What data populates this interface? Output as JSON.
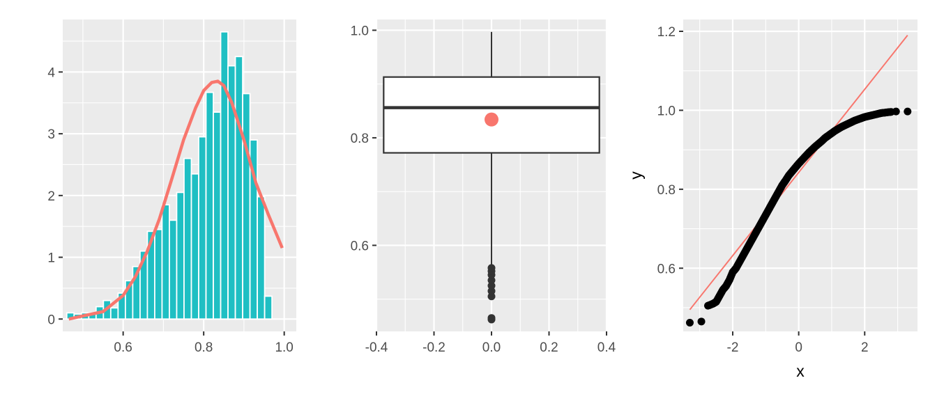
{
  "chart_data": [
    {
      "type": "histogram",
      "panel": "histogram-with-density",
      "xlim": [
        0.45,
        1.03
      ],
      "ylim": [
        -0.2,
        4.85
      ],
      "x_ticks": [
        0.6,
        0.8,
        1.0
      ],
      "x_tick_labels": [
        "0.6",
        "0.8",
        "1.0"
      ],
      "y_ticks": [
        0,
        1,
        2,
        3,
        4
      ],
      "y_tick_labels": [
        "0",
        "1",
        "2",
        "3",
        "4"
      ],
      "grid": true,
      "bar_color": "#1fbfc3",
      "bar_outline": "#ffffff",
      "bins": {
        "start": 0.46,
        "width": 0.0182,
        "heights": [
          0.1,
          0.08,
          0.1,
          0.1,
          0.2,
          0.3,
          0.18,
          0.42,
          0.62,
          0.85,
          1.1,
          1.42,
          1.45,
          1.85,
          1.6,
          2.05,
          2.6,
          2.35,
          2.95,
          3.67,
          3.35,
          4.65,
          4.1,
          4.25,
          3.65,
          2.9,
          1.98,
          0.37
        ]
      },
      "density_curve": {
        "color": "#f8766d",
        "x": [
          0.465,
          0.5,
          0.55,
          0.6,
          0.63,
          0.66,
          0.69,
          0.72,
          0.75,
          0.78,
          0.8,
          0.82,
          0.835,
          0.85,
          0.87,
          0.9,
          0.93,
          0.96,
          0.995
        ],
        "y": [
          0.0,
          0.05,
          0.12,
          0.38,
          0.68,
          1.1,
          1.62,
          2.25,
          2.9,
          3.42,
          3.7,
          3.83,
          3.85,
          3.78,
          3.5,
          2.9,
          2.2,
          1.7,
          1.15
        ]
      }
    },
    {
      "type": "boxplot",
      "panel": "boxplot",
      "xlim": [
        -0.4,
        0.4
      ],
      "ylim": [
        0.44,
        1.02
      ],
      "x_ticks": [
        -0.4,
        -0.2,
        0.0,
        0.2,
        0.4
      ],
      "x_tick_labels": [
        "-0.4",
        "-0.2",
        "0.0",
        "0.2",
        "0.4"
      ],
      "y_ticks": [
        0.6,
        0.8,
        1.0
      ],
      "y_tick_labels": [
        "0.6",
        "0.8",
        "1.0"
      ],
      "grid": true,
      "box": {
        "x_left": -0.375,
        "x_right": 0.375,
        "center": 0.0,
        "q1": 0.772,
        "median": 0.856,
        "q3": 0.913,
        "whisker_low": 0.56,
        "whisker_high": 0.997,
        "mean": 0.834,
        "mean_color": "#f8766d",
        "outliers": [
          0.462,
          0.465,
          0.505,
          0.515,
          0.525,
          0.535,
          0.545,
          0.552,
          0.558
        ]
      }
    },
    {
      "type": "scatter",
      "panel": "qq-plot",
      "xlabel": "x",
      "ylabel": "y",
      "xlim": [
        -3.5,
        3.6
      ],
      "ylim": [
        0.44,
        1.23
      ],
      "x_ticks": [
        -2,
        0,
        2
      ],
      "x_tick_labels": [
        "-2",
        "0",
        "2"
      ],
      "y_ticks": [
        0.6,
        0.8,
        1.0,
        1.2
      ],
      "y_tick_labels": [
        "0.6",
        "0.8",
        "1.0",
        "1.2"
      ],
      "grid": true,
      "reference_line": {
        "color": "#f8766d",
        "x": [
          -3.3,
          3.3
        ],
        "y": [
          0.495,
          1.19
        ]
      },
      "points": {
        "color": "#000000",
        "x": [
          -3.3,
          -2.95,
          -2.75,
          -2.6,
          -2.5,
          -2.4,
          -2.3,
          -2.2,
          -2.1,
          -2.0,
          -1.9,
          -1.8,
          -1.7,
          -1.6,
          -1.5,
          -1.4,
          -1.3,
          -1.2,
          -1.1,
          -1.0,
          -0.9,
          -0.8,
          -0.7,
          -0.6,
          -0.5,
          -0.4,
          -0.3,
          -0.2,
          -0.1,
          0.0,
          0.1,
          0.2,
          0.3,
          0.4,
          0.5,
          0.6,
          0.7,
          0.8,
          0.9,
          1.0,
          1.1,
          1.2,
          1.3,
          1.4,
          1.5,
          1.6,
          1.7,
          1.8,
          1.9,
          2.0,
          2.1,
          2.2,
          2.3,
          2.4,
          2.5,
          2.6,
          2.7,
          2.8,
          2.95,
          3.3
        ],
        "y": [
          0.462,
          0.465,
          0.505,
          0.51,
          0.515,
          0.53,
          0.545,
          0.555,
          0.57,
          0.59,
          0.6,
          0.615,
          0.63,
          0.645,
          0.66,
          0.675,
          0.69,
          0.705,
          0.72,
          0.735,
          0.75,
          0.765,
          0.78,
          0.795,
          0.81,
          0.822,
          0.835,
          0.845,
          0.855,
          0.865,
          0.874,
          0.883,
          0.892,
          0.9,
          0.908,
          0.915,
          0.922,
          0.93,
          0.936,
          0.942,
          0.948,
          0.953,
          0.958,
          0.962,
          0.966,
          0.97,
          0.974,
          0.977,
          0.98,
          0.983,
          0.985,
          0.987,
          0.989,
          0.991,
          0.993,
          0.994,
          0.995,
          0.996,
          0.997,
          0.997
        ]
      }
    }
  ]
}
